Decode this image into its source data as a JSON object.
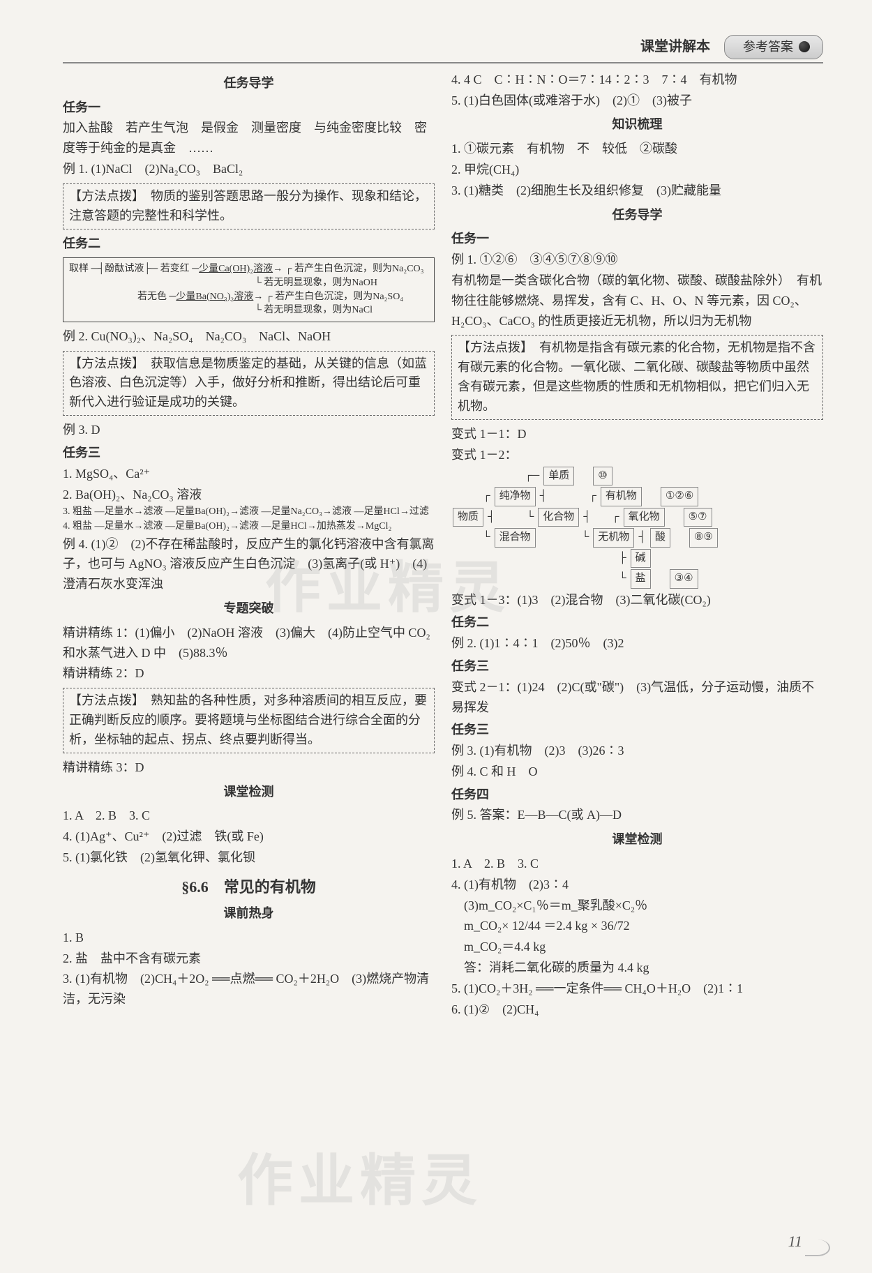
{
  "header": {
    "book": "课堂讲解本",
    "label": "参考答案"
  },
  "left": {
    "sec1_title": "任务导学",
    "task1_title": "任务一",
    "t1_p1": "加入盐酸　若产生气泡　是假金　测量密度　与纯金密度比较　密度等于纯金的是真金　……",
    "t1_ex1": "例 1. (1)NaCl　(2)Na₂CO₃　BaCl₂",
    "tip1": "【方法点拨】　物质的鉴别答题思路一般分为操作、现象和结论，注意答题的完整性和科学性。",
    "task2_title": "任务二",
    "flow_r1a": "若产生白色沉淀，则为Na₂CO₃",
    "flow_r1b": "若无明显现象，则为NaOH",
    "flow_r2a": "若产生白色沉淀，则为Na₂SO₄",
    "flow_r2b": "若无明显现象，则为NaCl",
    "flow_left": "取样",
    "flow_mid_top": "酚酞试液",
    "flow_mid_red": "若变红",
    "flow_mid_blue": "若无色",
    "flow_branch1": "少量Ca(OH)₂溶液",
    "flow_branch2": "少量Ba(NO₃)₂溶液",
    "ex2": "例 2. Cu(NO₃)₂、Na₂SO₄　Na₂CO₃　NaCl、NaOH",
    "tip2": "【方法点拨】　获取信息是物质鉴定的基础，从关键的信息（如蓝色溶液、白色沉淀等）入手，做好分析和推断，得出结论后可重新代入进行验证是成功的关键。",
    "ex3": "例 3. D",
    "task3_title": "任务三",
    "t3_1": "1. MgSO₄、Ca²⁺",
    "t3_2": "2. Ba(OH)₂、Na₂CO₃ 溶液",
    "t3_3": "3. 粗盐 —足量水→滤液 —足量Ba(OH)₂→滤液 —足量Na₂CO₃→滤液 —足量HCl→过滤",
    "t3_4": "4. 粗盐 —足量水→滤液 —足量Ba(OH)₂→滤液 —足量HCl→加热蒸发→MgCl₂",
    "ex4": "例 4. (1)②　(2)不存在稀盐酸时，反应产生的氯化钙溶液中含有氯离子，也可与 AgNO₃ 溶液反应产生白色沉淀　(3)氢离子(或 H⁺)　(4)澄清石灰水变浑浊",
    "zt_title": "专题突破",
    "jj1": "精讲精练 1：(1)偏小　(2)NaOH 溶液　(3)偏大　(4)防止空气中 CO₂ 和水蒸气进入 D 中　(5)88.3％",
    "jj2": "精讲精练 2：D",
    "tip3": "【方法点拨】　熟知盐的各种性质，对多种溶质间的相互反应，要正确判断反应的顺序。要将题境与坐标图结合进行综合全面的分析，坐标轴的起点、拐点、终点要判断得当。",
    "jj3": "精讲精练 3：D",
    "ktjc_title": "课堂检测",
    "ktjc_1": "1. A　2. B　3. C",
    "ktjc_4": "4. (1)Ag⁺、Cu²⁺　(2)过滤　铁(或 Fe)",
    "ktjc_5": "5. (1)氯化铁　(2)氢氧化钾、氯化钡",
    "chapter": "§6.6　常见的有机物",
    "kqrs_title": "课前热身",
    "kq_1": "1. B",
    "kq_2": "2. 盐　盐中不含有碳元素",
    "kq_3": "3. (1)有机物　(2)CH₄＋2O₂ ══点燃══ CO₂＋2H₂O　(3)燃烧产物清洁，无污染"
  },
  "right": {
    "r_4": "4. 4 C　C∶H∶N∶O＝7∶14∶2∶3　7∶4　有机物",
    "r_5": "5. (1)白色固体(或难溶于水)　(2)①　(3)被子",
    "zssl_title": "知识梳理",
    "zs_1": "1. ①碳元素　有机物　不　较低　②碳酸",
    "zs_2": "2. 甲烷(CH₄)",
    "zs_3": "3. (1)糖类　(2)细胞生长及组织修复　(3)贮藏能量",
    "rwdx_title": "任务导学",
    "task1_title": "任务一",
    "ex1": "例 1. ①②⑥　③④⑤⑦⑧⑨⑩",
    "ex1_text": "有机物是一类含碳化合物（碳的氧化物、碳酸、碳酸盐除外）　有机物往往能够燃烧、易挥发，含有 C、H、O、N 等元素，因 CO₂、H₂CO₃、CaCO₃ 的性质更接近无机物，所以归为无机物",
    "tip4": "【方法点拨】　有机物是指含有碳元素的化合物，无机物是指不含有碳元素的化合物。一氧化碳、二氧化碳、碳酸盐等物质中虽然含有碳元素，但是这些物质的性质和无机物相似，把它们归入无机物。",
    "bs11": "变式 1－1：D",
    "bs12": "变式 1－2：",
    "tree": {
      "root": "物质",
      "n_pure": "纯净物",
      "n_mix": "混合物",
      "n_elem": "单质",
      "n_comp": "化合物",
      "n_org": "有机物",
      "n_oxide": "氧化物",
      "n_acid": "酸",
      "n_base": "碱",
      "n_salt": "盐",
      "v_elem": "⑩",
      "v_org": "①②⑥",
      "v_oxide": "⑤⑦",
      "v_acid": "⑧⑨",
      "v_salt": "③④",
      "n_inorg": "无机物"
    },
    "bs13": "变式 1－3：(1)3　(2)混合物　(3)二氧化碳(CO₂)",
    "task2_title": "任务二",
    "ex2": "例 2. (1)1∶4∶1　(2)50％　(3)2",
    "task3_title": "任务三",
    "bs21": "变式 2－1：(1)24　(2)C(或\"碳\")　(3)气温低，分子运动慢，油质不易挥发",
    "task3b_title": "任务三",
    "ex3": "例 3. (1)有机物　(2)3　(3)26∶3",
    "ex4": "例 4. C 和 H　O",
    "task4_title": "任务四",
    "ex5": "例 5. 答案：E—B—C(或 A)—D",
    "ktjc_title": "课堂检测",
    "kt_1": "1. A　2. B　3. C",
    "kt_4a": "4. (1)有机物　(2)3∶4",
    "kt_4b": "(3)m_CO₂×C₁％＝m_聚乳酸×C₂％",
    "kt_4c": "m_CO₂× 12/44 ＝2.4 kg × 36/72",
    "kt_4d": "m_CO₂＝4.4 kg",
    "kt_4e": "答：消耗二氧化碳的质量为 4.4 kg",
    "kt_5": "5. (1)CO₂＋3H₂ ══一定条件══ CH₄O＋H₂O　(2)1∶1",
    "kt_6": "6. (1)②　(2)CH₄"
  },
  "pagenum": "11",
  "watermark": "作业精灵"
}
